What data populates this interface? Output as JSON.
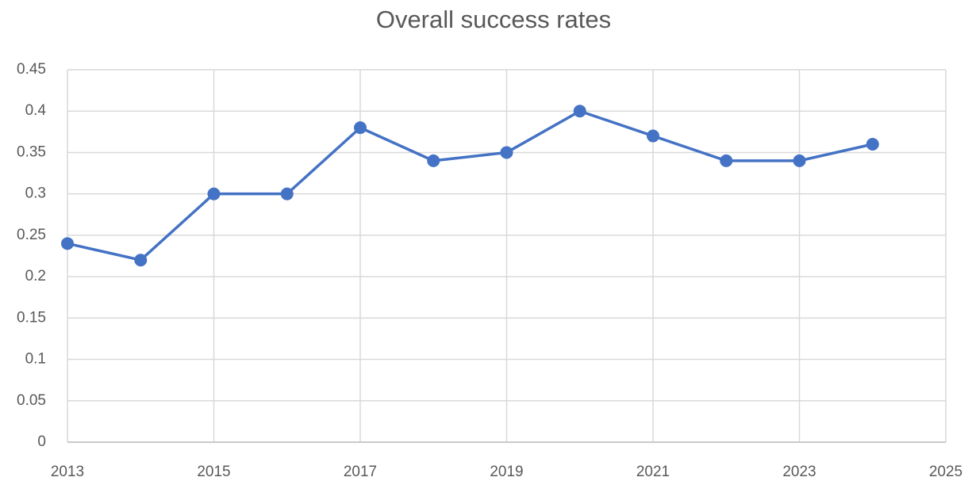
{
  "chart_data": {
    "type": "line",
    "title": "Overall success rates",
    "x": [
      2013,
      2014,
      2015,
      2016,
      2017,
      2018,
      2019,
      2020,
      2021,
      2022,
      2023,
      2024
    ],
    "values": [
      0.24,
      0.22,
      0.3,
      0.3,
      0.38,
      0.34,
      0.35,
      0.4,
      0.37,
      0.34,
      0.34,
      0.36
    ],
    "color": "#4472c4",
    "xlim": [
      2013,
      2025
    ],
    "xticks": [
      2013,
      2015,
      2017,
      2019,
      2021,
      2023,
      2025
    ],
    "ylim": [
      0,
      0.45
    ],
    "yticks": [
      0,
      0.05,
      0.1,
      0.15,
      0.2,
      0.25,
      0.3,
      0.35,
      0.4,
      0.45
    ],
    "grid": true
  }
}
